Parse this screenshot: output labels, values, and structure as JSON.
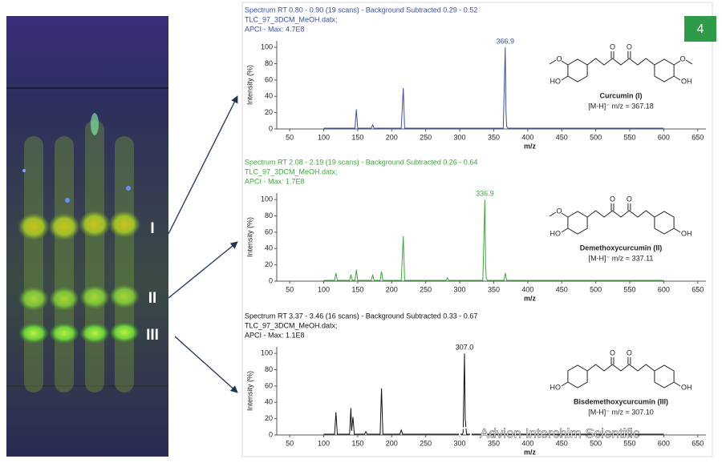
{
  "badge": "4",
  "plate": {
    "labels": [
      "I",
      "II",
      "III"
    ]
  },
  "watermark": "Advion Interchim Scientific",
  "chart_data": [
    {
      "type": "line",
      "color": "#3b4fa8",
      "header": [
        "Spectrum RT 0.80 - 0.90 (19 scans) - Background Subtracted 0.29 - 0.52",
        "TLC_97_3DCM_MeOH.datx;",
        "APCI -   Max: 4.7E8"
      ],
      "xlabel": "m/z",
      "ylabel": "Intensity (%)",
      "x": [
        100,
        146,
        148,
        150,
        170,
        172,
        174,
        214,
        217,
        219,
        364,
        366.9,
        368,
        369,
        371,
        600
      ],
      "values": [
        1,
        1,
        24,
        1,
        1,
        5,
        1,
        1,
        50,
        1,
        1,
        100,
        22,
        3,
        1,
        1
      ],
      "annotations": [
        {
          "x": 366.9,
          "label": "366.9"
        }
      ],
      "xlim": [
        31,
        662
      ],
      "ylim": [
        0,
        108
      ],
      "xticks": [
        50,
        100,
        150,
        200,
        250,
        300,
        350,
        400,
        450,
        500,
        550,
        600,
        650
      ],
      "yticks": [
        0,
        20,
        40,
        60,
        80,
        100
      ],
      "structure": {
        "name": "Curcumin (I)",
        "formula": "[M-H]⁻ m/z = 367.18",
        "atoms": [
          "O",
          "HO",
          "O",
          "O",
          "O",
          "OH"
        ]
      }
    },
    {
      "type": "line",
      "color": "#3aa83a",
      "header": [
        "Spectrum RT 2.08 - 2.19 (19 scans) - Background Subtracted 0.26 - 0.64",
        "TLC_97_3DCM_MeOH.datx;",
        "APCI -   Max: 1.7E8"
      ],
      "xlabel": "m/z",
      "ylabel": "Intensity (%)",
      "x": [
        100,
        116,
        118,
        120,
        138,
        140,
        142,
        146,
        148,
        150,
        170,
        172,
        174,
        183,
        185,
        187,
        214,
        217,
        219,
        280,
        282,
        284,
        334,
        336.9,
        338,
        339,
        341,
        365,
        367,
        369,
        600
      ],
      "values": [
        1,
        1,
        10,
        1,
        1,
        8,
        1,
        1,
        14,
        1,
        1,
        8,
        1,
        1,
        12,
        1,
        1,
        55,
        1,
        1,
        4,
        1,
        1,
        100,
        20,
        3,
        1,
        1,
        10,
        1,
        1
      ],
      "annotations": [
        {
          "x": 336.9,
          "label": "336.9"
        }
      ],
      "xlim": [
        31,
        662
      ],
      "ylim": [
        0,
        108
      ],
      "xticks": [
        50,
        100,
        150,
        200,
        250,
        300,
        350,
        400,
        450,
        500,
        550,
        600,
        650
      ],
      "yticks": [
        0,
        20,
        40,
        60,
        80,
        100
      ],
      "structure": {
        "name": "Demethoxycurcumin (II)",
        "formula": "[M-H]⁻ m/z = 337.11",
        "atoms": [
          "O",
          "HO",
          "O",
          "O",
          "OH"
        ]
      }
    },
    {
      "type": "line",
      "color": "#111111",
      "header": [
        "Spectrum RT 3.37 - 3.46 (16 scans) - Background Subtracted 0.33 - 0.67",
        "TLC_97_3DCM_MeOH.datx;",
        "APCI -   Max: 1.1E8"
      ],
      "xlabel": "m/z",
      "ylabel": "Intensity (%)",
      "x": [
        100,
        116,
        118,
        120,
        138,
        140,
        141,
        143,
        145,
        160,
        162,
        164,
        183,
        185,
        187,
        212,
        214,
        216,
        304,
        305,
        307,
        308,
        310,
        600
      ],
      "values": [
        1,
        1,
        28,
        1,
        1,
        33,
        5,
        22,
        1,
        1,
        4,
        1,
        1,
        57,
        1,
        1,
        6,
        1,
        1,
        3,
        100,
        20,
        1,
        1
      ],
      "annotations": [
        {
          "x": 307,
          "label": "307.0"
        }
      ],
      "xlim": [
        31,
        662
      ],
      "ylim": [
        0,
        108
      ],
      "xticks": [
        50,
        100,
        150,
        200,
        250,
        300,
        350,
        400,
        450,
        500,
        550,
        600,
        650
      ],
      "yticks": [
        0,
        20,
        40,
        60,
        80,
        100
      ],
      "structure": {
        "name": "Bisdemethoxycurcumin (III)",
        "formula": "[M-H]⁻ m/z = 307.10",
        "atoms": [
          "HO",
          "O",
          "O",
          "OH"
        ]
      }
    }
  ]
}
